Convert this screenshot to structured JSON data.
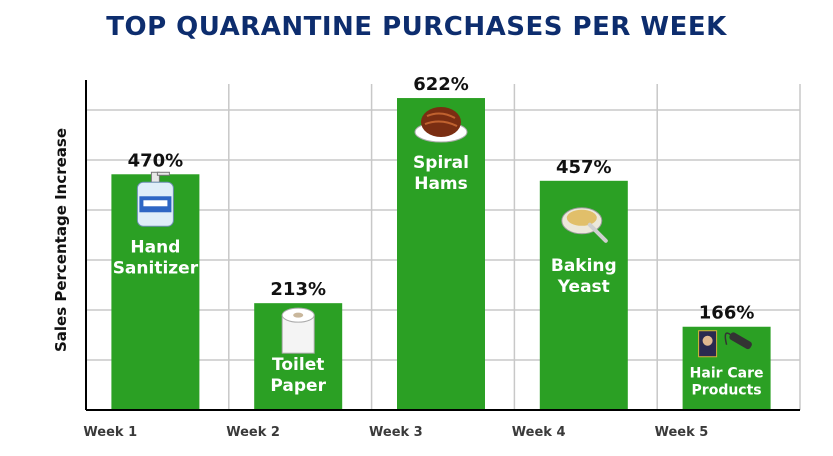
{
  "chart_data": {
    "type": "bar",
    "title": "TOP QUARANTINE PURCHASES PER WEEK",
    "xlabel": "",
    "ylabel": "Sales Percentage Increase",
    "ylim": [
      0,
      650
    ],
    "grid": true,
    "categories": [
      "Week 1",
      "Week 2",
      "Week 3",
      "Week 4",
      "Week 5"
    ],
    "values": [
      470,
      213,
      622,
      457,
      166
    ],
    "value_labels": [
      "470%",
      "213%",
      "622%",
      "457%",
      "166%"
    ],
    "bar_labels": [
      [
        "Hand",
        "Sanitizer"
      ],
      [
        "Toilet",
        "Paper"
      ],
      [
        "Spiral",
        "Hams"
      ],
      [
        "Baking",
        "Yeast"
      ],
      [
        "Hair Care",
        "Products"
      ]
    ],
    "icons": [
      "hand-sanitizer-icon",
      "toilet-paper-icon",
      "spiral-ham-icon",
      "baking-yeast-icon",
      "hair-care-icon"
    ],
    "colors": {
      "bar": "#2ba024",
      "title": "#0d2d6e",
      "grid": "#c8c8c8",
      "axis": "#000000"
    }
  }
}
